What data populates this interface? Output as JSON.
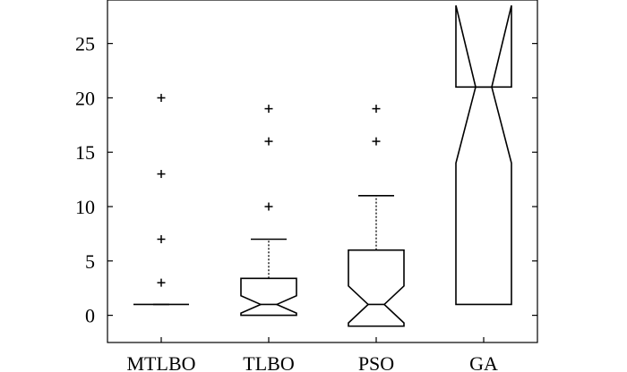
{
  "chart_data": {
    "type": "boxplot",
    "title": "",
    "xlabel": "",
    "ylabel": "",
    "categories": [
      "MTLBO",
      "TLBO",
      "PSO",
      "GA"
    ],
    "ylim": [
      -2.5,
      29
    ],
    "yticks": [
      0,
      5,
      10,
      15,
      20,
      25
    ],
    "grid": false,
    "notched": true,
    "boxes": [
      {
        "name": "MTLBO",
        "q1": 1,
        "median": 1,
        "q3": 1,
        "whisker_low": 1,
        "whisker_high": 1,
        "notch_low": 1,
        "notch_high": 1,
        "outliers": [
          3,
          7,
          13,
          20
        ]
      },
      {
        "name": "TLBO",
        "q1": 0,
        "median": 1,
        "q3": 3.4,
        "whisker_low": 0,
        "whisker_high": 7,
        "notch_low": 0.2,
        "notch_high": 1.8,
        "outliers": [
          10,
          16,
          19
        ]
      },
      {
        "name": "PSO",
        "q1": -1,
        "median": 1,
        "q3": 6,
        "whisker_low": -1,
        "whisker_high": 11,
        "notch_low": -0.7,
        "notch_high": 2.7,
        "outliers": [
          16,
          19
        ]
      },
      {
        "name": "GA",
        "q1": 1,
        "median": 21,
        "q3": 21,
        "whisker_low": 1,
        "whisker_high": 21,
        "notch_low": 14,
        "notch_high": 28.5,
        "outliers": []
      }
    ]
  }
}
